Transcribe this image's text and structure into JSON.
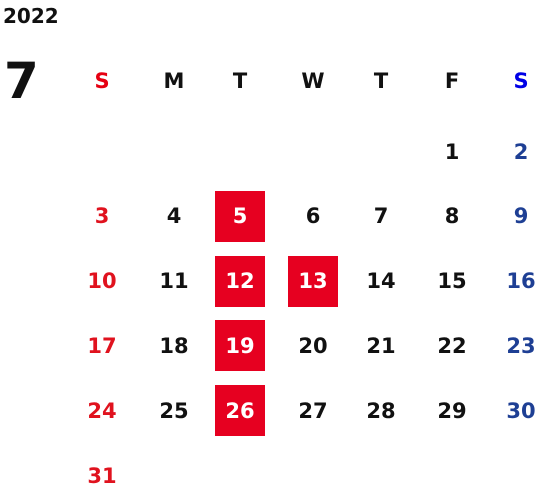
{
  "calendar": {
    "year": "2022",
    "month": "7",
    "weekdays": [
      "S",
      "M",
      "T",
      "W",
      "T",
      "F",
      "S"
    ],
    "weekday_colors": [
      "#e60012",
      "#111111",
      "#111111",
      "#111111",
      "#111111",
      "#111111",
      "#0000e6"
    ],
    "day_colors": [
      "#e0121e",
      "#111111",
      "#111111",
      "#111111",
      "#111111",
      "#111111",
      "#1e3f94"
    ],
    "highlight_color": "#e60020",
    "highlighted_days": [
      "5",
      "12",
      "13",
      "19",
      "26"
    ],
    "weeks": [
      [
        null,
        null,
        null,
        null,
        null,
        "1",
        "2"
      ],
      [
        "3",
        "4",
        "5",
        "6",
        "7",
        "8",
        "9"
      ],
      [
        "10",
        "11",
        "12",
        "13",
        "14",
        "15",
        "16"
      ],
      [
        "17",
        "18",
        "19",
        "20",
        "21",
        "22",
        "23"
      ],
      [
        "24",
        "25",
        "26",
        "27",
        "28",
        "29",
        "30"
      ],
      [
        "31",
        null,
        null,
        null,
        null,
        null,
        null
      ]
    ]
  }
}
